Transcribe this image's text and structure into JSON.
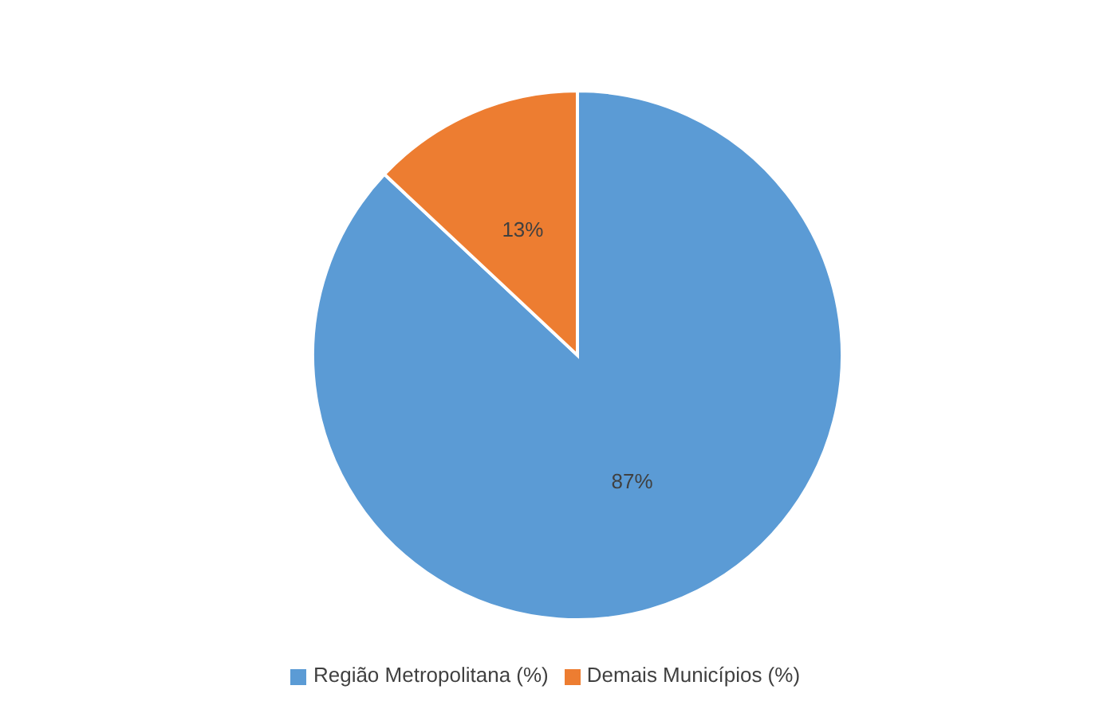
{
  "chart_data": {
    "type": "pie",
    "categories": [
      "Região Metropolitana (%)",
      "Demais Municípios (%)"
    ],
    "values": [
      87,
      13
    ],
    "colors": [
      "#5b9bd5",
      "#ed7d31"
    ],
    "value_labels": [
      "87%",
      "13%"
    ],
    "legend": "bottom"
  }
}
